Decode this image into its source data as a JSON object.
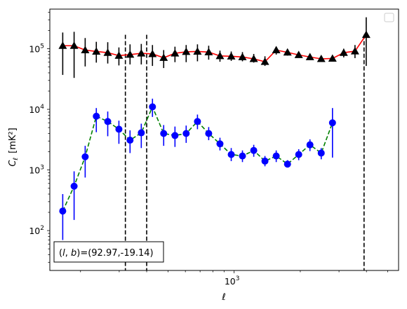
{
  "chart_data": {
    "type": "scatter",
    "xlabel": "ℓ",
    "ylabel": "C",
    "ylabel_sub": "ℓ",
    "ylabel_unit": "[mK²]",
    "xscale": "log",
    "yscale": "log",
    "xlim": [
      145,
      5600
    ],
    "ylim": [
      22,
      450000
    ],
    "x_tick_labels": [
      {
        "value": 1000,
        "base": "10",
        "exp": "3"
      }
    ],
    "y_tick_labels": [
      {
        "value": 100,
        "base": "10",
        "exp": "2"
      },
      {
        "value": 1000,
        "base": "10",
        "exp": "3"
      },
      {
        "value": 10000,
        "base": "10",
        "exp": "4"
      },
      {
        "value": 100000,
        "base": "10",
        "exp": "5"
      }
    ],
    "legend": {
      "placement": "top-right",
      "entries": []
    },
    "annotation": "(l, b)=(92.97,-19.14)",
    "annotation_parts": {
      "open": "(",
      "l": "l",
      "sep": ", ",
      "b": "b",
      "close": ")",
      "value": "=(92.97,-19.14)"
    },
    "vlines": [
      {
        "x": 320,
        "style": "dashed",
        "color": "#000000"
      },
      {
        "x": 400,
        "style": "dashed",
        "color": "#000000"
      },
      {
        "x": 3900,
        "style": "dashed",
        "color": "#000000"
      }
    ],
    "series": [
      {
        "color": "#000000",
        "marker": "triangle",
        "line_color": "#ff0000",
        "line_style": "solid",
        "x": [
          166,
          187,
          210,
          236,
          266,
          299,
          336,
          378,
          425,
          478,
          538,
          605,
          681,
          766,
          862,
          970,
          1091,
          1228,
          1381,
          1554,
          1749,
          1967,
          2213,
          2490,
          2802,
          3152,
          3547,
          3990,
          4489,
          4789
        ],
        "y": [
          112000,
          112000,
          95000,
          90000,
          86000,
          77000,
          80000,
          84000,
          82000,
          71000,
          84000,
          89000,
          90000,
          88000,
          76000,
          75000,
          73000,
          68000,
          61000,
          95000,
          87000,
          79000,
          73000,
          68000,
          69000,
          86000,
          91000,
          170000,
          null,
          null
        ],
        "yerr_low": [
          37000,
          33000,
          51000,
          59000,
          57000,
          53000,
          55000,
          55000,
          52000,
          48000,
          60000,
          60000,
          62000,
          66000,
          61000,
          63000,
          62000,
          59000,
          52000,
          80000,
          77000,
          72000,
          65000,
          62000,
          63000,
          72000,
          70000,
          52000,
          null,
          null
        ],
        "yerr_high": [
          185000,
          190000,
          150000,
          130000,
          128000,
          105000,
          118000,
          120000,
          115000,
          95000,
          108000,
          115000,
          118000,
          112000,
          93000,
          90000,
          88000,
          82000,
          75000,
          108000,
          97000,
          86000,
          80000,
          74000,
          75000,
          100000,
          115000,
          330000,
          null,
          null
        ]
      },
      {
        "color": "#0000ff",
        "marker": "circle",
        "line_color": "#008000",
        "line_style": "dashed",
        "x": [
          166,
          187,
          210,
          236,
          266,
          299,
          336,
          378,
          425,
          478,
          538,
          605,
          681,
          766,
          862,
          970,
          1091,
          1228,
          1381,
          1554,
          1749,
          1967,
          2213,
          2490,
          2802,
          3152,
          3547,
          3990,
          4489
        ],
        "y": [
          210,
          540,
          1650,
          7700,
          6300,
          4700,
          3100,
          4100,
          11000,
          4000,
          3700,
          4000,
          6300,
          4000,
          2700,
          1800,
          1700,
          2100,
          1400,
          1700,
          1250,
          1800,
          2600,
          1900,
          6000,
          null,
          null,
          null,
          null
        ],
        "yerr_low": [
          70,
          150,
          750,
          4200,
          3600,
          2700,
          1900,
          2300,
          7500,
          2500,
          2400,
          2800,
          4700,
          3100,
          2100,
          1400,
          1350,
          1650,
          1150,
          1350,
          1100,
          1450,
          2050,
          1500,
          1600,
          null,
          null,
          null,
          null
        ],
        "yerr_high": [
          400,
          950,
          2500,
          10500,
          9200,
          6500,
          4500,
          5800,
          15000,
          5500,
          5200,
          5400,
          8200,
          5100,
          3400,
          2300,
          2100,
          2600,
          1700,
          2100,
          1450,
          2200,
          3200,
          2300,
          10500,
          null,
          null,
          null,
          null
        ]
      }
    ]
  }
}
